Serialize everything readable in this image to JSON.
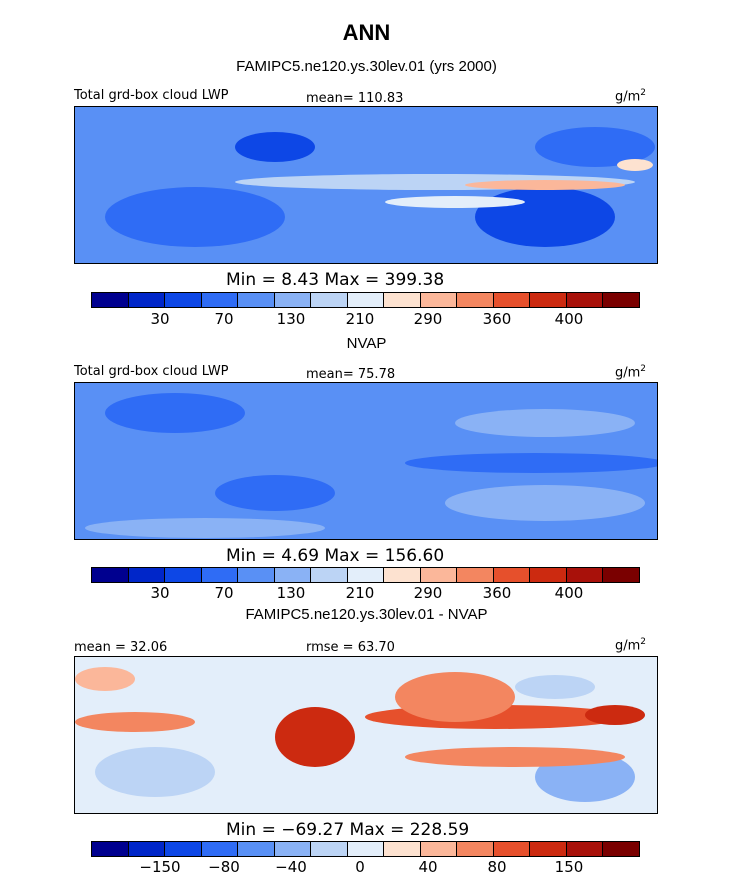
{
  "figure": {
    "title": "ANN",
    "subtitle": "FAMIPC5.ne120.ys.30lev.01 (yrs 2000)"
  },
  "chart_data": [
    {
      "type": "heatmap",
      "title": "FAMIPC5.ne120.ys.30lev.01 (yrs 2000)",
      "variable_label": "Total grd-box cloud LWP",
      "units": "g/m",
      "units_sup": "2",
      "stats_left": "mean=  110.83",
      "min_max": "Min =    8.43  Max =  399.38",
      "min": 8.43,
      "max": 399.38,
      "mean": 110.83,
      "colorbar": {
        "colors": [
          "#00008f",
          "#0026c9",
          "#0d47e6",
          "#2f6cf5",
          "#5990f5",
          "#8ab2f5",
          "#bcd4f5",
          "#e3eefa",
          "#fde2d0",
          "#fbb79a",
          "#f38660",
          "#e6502c",
          "#cc2a10",
          "#a8110a",
          "#7a0000"
        ],
        "tick_labels": [
          "30",
          "70",
          "130",
          "210",
          "290",
          "360",
          "400"
        ]
      }
    },
    {
      "type": "heatmap",
      "title": "NVAP",
      "variable_label": "Total grd-box cloud LWP",
      "units": "g/m",
      "units_sup": "2",
      "stats_left": "mean=  75.78",
      "min_max": "Min =    4.69  Max =  156.60",
      "min": 4.69,
      "max": 156.6,
      "mean": 75.78,
      "colorbar": {
        "colors": [
          "#00008f",
          "#0026c9",
          "#0d47e6",
          "#2f6cf5",
          "#5990f5",
          "#8ab2f5",
          "#bcd4f5",
          "#e3eefa",
          "#fde2d0",
          "#fbb79a",
          "#f38660",
          "#e6502c",
          "#cc2a10",
          "#a8110a",
          "#7a0000"
        ],
        "tick_labels": [
          "30",
          "70",
          "130",
          "210",
          "290",
          "360",
          "400"
        ]
      }
    },
    {
      "type": "heatmap",
      "title": "FAMIPC5.ne120.ys.30lev.01 - NVAP",
      "variable_label": "",
      "units": "g/m",
      "units_sup": "2",
      "stats_left": "mean =   32.06",
      "stats_mid": "rmse =   63.70",
      "min_max": "Min = −69.27  Max =  228.59",
      "min": -69.27,
      "max": 228.59,
      "mean": 32.06,
      "rmse": 63.7,
      "colorbar": {
        "colors": [
          "#00008f",
          "#0026c9",
          "#0d47e6",
          "#2f6cf5",
          "#5990f5",
          "#8ab2f5",
          "#bcd4f5",
          "#e3eefa",
          "#fde2d0",
          "#fbb79a",
          "#f38660",
          "#e6502c",
          "#cc2a10",
          "#a8110a",
          "#7a0000"
        ],
        "tick_labels": [
          "−150",
          "−80",
          "−40",
          "0",
          "40",
          "80",
          "150"
        ]
      }
    }
  ]
}
